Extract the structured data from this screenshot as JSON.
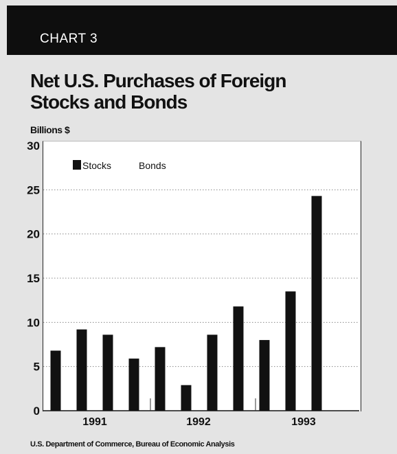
{
  "header": {
    "label": "CHART 3"
  },
  "chart_title": {
    "line1": "Net U.S. Purchases of Foreign",
    "line2": "Stocks and Bonds"
  },
  "source": "U.S. Department of Commerce, Bureau of Economic Analysis",
  "colors": {
    "bar": "#111111",
    "header_bg": "#0e0e0e",
    "plot_bg": "#ffffff",
    "gridline": "#888888"
  },
  "chart_data": {
    "type": "bar",
    "title": "Net U.S. Purchases of Foreign Stocks and Bonds",
    "ylabel": "Billions $",
    "ylim": [
      0,
      30
    ],
    "yticks": [
      0,
      5,
      10,
      15,
      20,
      25,
      30
    ],
    "grid": true,
    "legend_position": "top-left",
    "legend": [
      {
        "label": "Stocks",
        "swatch": true
      },
      {
        "label": "Bonds",
        "swatch": false
      }
    ],
    "x_group_labels": [
      "1991",
      "1992",
      "1993"
    ],
    "series": [
      {
        "name": "Stocks",
        "values": [
          6.8,
          9.2,
          8.6,
          5.9,
          7.2,
          2.9,
          8.6,
          11.8,
          8.0,
          13.5,
          24.3
        ]
      }
    ]
  }
}
